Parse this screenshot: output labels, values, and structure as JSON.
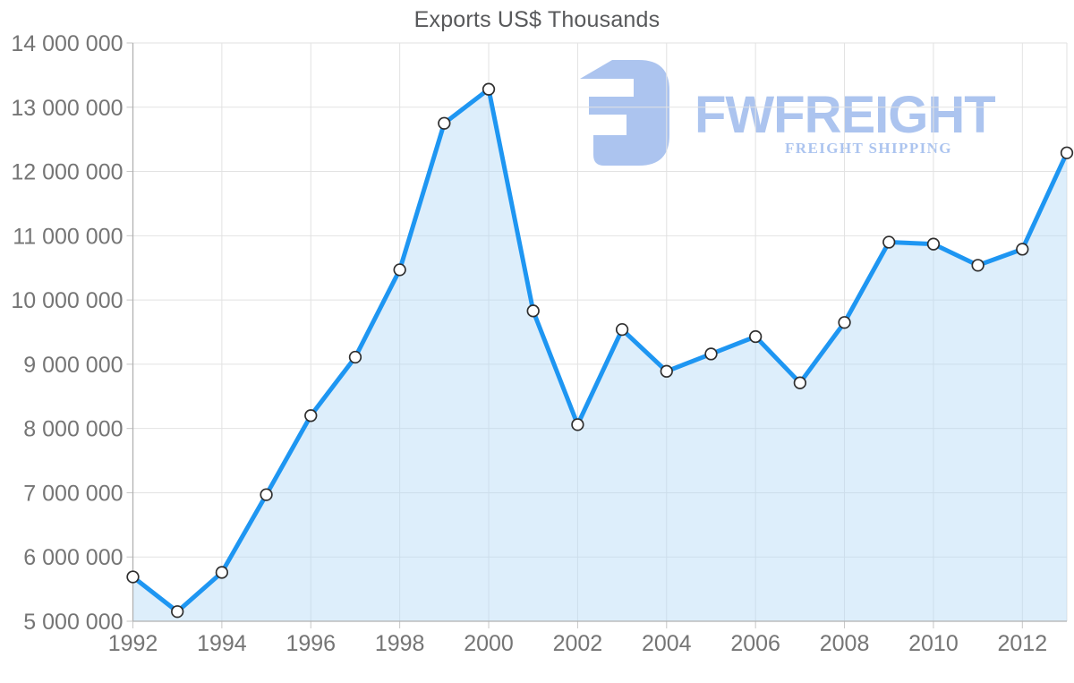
{
  "chart_data": {
    "type": "area",
    "title": "Exports US$ Thousands",
    "x": [
      1992,
      1993,
      1994,
      1995,
      1996,
      1997,
      1998,
      1999,
      2000,
      2001,
      2002,
      2003,
      2004,
      2005,
      2006,
      2007,
      2008,
      2009,
      2010,
      2011,
      2012,
      2013
    ],
    "series": [
      {
        "name": "Exports US$ Thousands",
        "values": [
          5690000,
          5150000,
          5760000,
          6970000,
          8200000,
          9110000,
          10470000,
          12750000,
          13280000,
          9830000,
          8060000,
          9540000,
          8890000,
          9160000,
          9430000,
          8710000,
          9650000,
          10900000,
          10870000,
          10540000,
          10790000,
          12290000
        ]
      }
    ],
    "xlabel": "",
    "ylabel": "",
    "ylim": [
      5000000,
      14000000
    ],
    "ytick_step": 1000000,
    "ytick_labels": [
      "5 000 000",
      "6 000 000",
      "7 000 000",
      "8 000 000",
      "9 000 000",
      "10 000 000",
      "11 000 000",
      "12 000 000",
      "13 000 000",
      "14 000 000"
    ],
    "xtick_labels": [
      "1992",
      "1994",
      "1996",
      "1998",
      "2000",
      "2002",
      "2004",
      "2006",
      "2008",
      "2010",
      "2012"
    ],
    "grid": "horizontal every 1M, vertical at even years",
    "legend_position": "none",
    "number_format": "space-grouped"
  },
  "watermark": {
    "brand": "FWFREIGHT",
    "tagline": "FREIGHT SHIPPING",
    "icon": "fw-monogram-icon"
  },
  "colors": {
    "line": "#1e96f2",
    "area_fill": "#b3d9f7",
    "marker_fill": "#ffffff",
    "marker_stroke": "#2f2f2f",
    "grid": "#e2e2e2",
    "axis": "#b1b1b1",
    "tick": "#c6c6c6",
    "axis_label": "#757575",
    "title": "#58595b",
    "logo": "#a5c0ee"
  }
}
